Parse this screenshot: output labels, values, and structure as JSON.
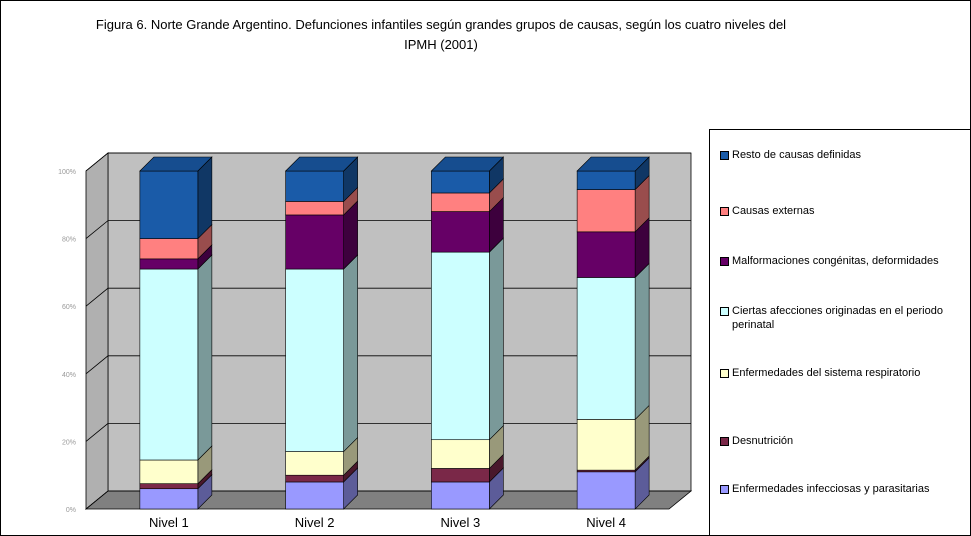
{
  "chart_data": {
    "type": "bar3d_stacked",
    "title": "Figura 6. Norte Grande Argentino. Defunciones infantiles según grandes grupos de causas, según los cuatro niveles del IPMH (2001)",
    "categories": [
      "Nivel 1",
      "Nivel 2",
      "Nivel 3",
      "Nivel 4"
    ],
    "series": [
      {
        "name": "Enfermedades infecciosas y parasitarias",
        "color": "#9999ff",
        "values": [
          6,
          8,
          8,
          11
        ]
      },
      {
        "name": "Desnutrición",
        "color": "#7a2848",
        "values": [
          1.5,
          2,
          4,
          0.5
        ]
      },
      {
        "name": "Enfermedades del sistema respiratorio",
        "color": "#ffffcc",
        "values": [
          7,
          7,
          8.5,
          15
        ]
      },
      {
        "name": "Ciertas afecciones originadas en el periodo perinatal",
        "color": "#ccffff",
        "values": [
          56.5,
          54,
          55.5,
          42
        ]
      },
      {
        "name": "Malformaciones congénitas, deformidades",
        "color": "#660066",
        "values": [
          3,
          16,
          12,
          13.5
        ]
      },
      {
        "name": "Causas externas",
        "color": "#ff8080",
        "values": [
          6,
          4,
          5.5,
          12.5
        ]
      },
      {
        "name": "Resto de causas definidas",
        "color": "#1a5ba8",
        "values": [
          20,
          9,
          6.5,
          5.5
        ]
      }
    ],
    "ylim": [
      0,
      100
    ],
    "yticks": [
      {
        "value": 0,
        "label": "0%"
      },
      {
        "value": 20,
        "label": "20%"
      },
      {
        "value": 40,
        "label": "40%"
      },
      {
        "value": 60,
        "label": "60%"
      },
      {
        "value": 80,
        "label": "80%"
      },
      {
        "value": 100,
        "label": "100%"
      }
    ],
    "grid": true
  }
}
